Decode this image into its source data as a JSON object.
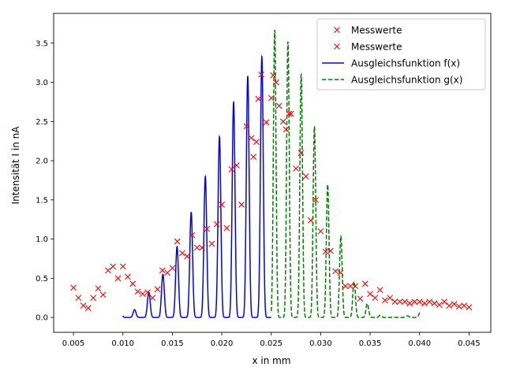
{
  "chart_data": {
    "type": "scatter",
    "xlabel": "x in mm",
    "ylabel": "Intensität I in nA",
    "xlim": [
      0.003,
      0.0472
    ],
    "ylim": [
      -0.19,
      3.88
    ],
    "x_ticks": [
      0.005,
      0.01,
      0.015,
      0.02,
      0.025,
      0.03,
      0.035,
      0.04,
      0.045
    ],
    "x_tick_labels": [
      "0.005",
      "0.010",
      "0.015",
      "0.020",
      "0.025",
      "0.030",
      "0.035",
      "0.040",
      "0.045"
    ],
    "y_ticks": [
      0.0,
      0.5,
      1.0,
      1.5,
      2.0,
      2.5,
      3.0,
      3.5
    ],
    "y_tick_labels": [
      "0.0",
      "0.5",
      "1.0",
      "1.5",
      "2.0",
      "2.5",
      "3.0",
      "3.5"
    ],
    "legend_position": "top-right",
    "grid": false,
    "series": [
      {
        "name": "Messwerte",
        "kind": "markers",
        "marker": "x",
        "color": "#ff0000",
        "points": [
          [
            0.005,
            0.38
          ],
          [
            0.0055,
            0.25
          ],
          [
            0.006,
            0.15
          ],
          [
            0.0065,
            0.12
          ],
          [
            0.007,
            0.25
          ],
          [
            0.0075,
            0.37
          ],
          [
            0.008,
            0.29
          ],
          [
            0.0085,
            0.6
          ],
          [
            0.009,
            0.65
          ],
          [
            0.0095,
            0.5
          ],
          [
            0.01,
            0.65
          ],
          [
            0.0105,
            0.52
          ],
          [
            0.011,
            0.43
          ],
          [
            0.0115,
            0.33
          ],
          [
            0.012,
            0.3
          ],
          [
            0.0125,
            0.32
          ],
          [
            0.013,
            0.25
          ],
          [
            0.0135,
            0.36
          ],
          [
            0.014,
            0.6
          ],
          [
            0.0145,
            0.57
          ],
          [
            0.015,
            0.63
          ],
          [
            0.0155,
            0.97
          ],
          [
            0.016,
            0.82
          ],
          [
            0.0165,
            0.78
          ],
          [
            0.017,
            1.05
          ],
          [
            0.0175,
            0.89
          ],
          [
            0.018,
            0.89
          ],
          [
            0.0185,
            1.13
          ],
          [
            0.019,
            0.94
          ],
          [
            0.0195,
            1.19
          ],
          [
            0.02,
            1.44
          ],
          [
            0.0205,
            1.14
          ],
          [
            0.021,
            1.89
          ],
          [
            0.0215,
            1.94
          ],
          [
            0.022,
            1.44
          ],
          [
            0.0225,
            2.44
          ],
          [
            0.023,
            2.29
          ],
          [
            0.0232,
            2.05
          ],
          [
            0.0235,
            2.24
          ],
          [
            0.0237,
            2.79
          ],
          [
            0.024,
            3.1
          ],
          [
            0.0245,
            2.49
          ],
          [
            0.025,
            2.8
          ],
          [
            0.0252,
            3.09
          ]
        ]
      },
      {
        "name": "Messwerte",
        "kind": "markers",
        "marker": "x",
        "color": "#ff0000",
        "points": [
          [
            0.0255,
            3.0
          ],
          [
            0.0258,
            2.7
          ],
          [
            0.0262,
            2.5
          ],
          [
            0.0265,
            2.4
          ],
          [
            0.0268,
            2.6
          ],
          [
            0.027,
            2.6
          ],
          [
            0.0275,
            1.9
          ],
          [
            0.028,
            2.1
          ],
          [
            0.0285,
            1.8
          ],
          [
            0.029,
            1.24
          ],
          [
            0.0295,
            1.5
          ],
          [
            0.03,
            1.1
          ],
          [
            0.0305,
            0.84
          ],
          [
            0.031,
            0.85
          ],
          [
            0.0315,
            0.59
          ],
          [
            0.032,
            0.57
          ],
          [
            0.0325,
            0.4
          ],
          [
            0.033,
            0.4
          ],
          [
            0.0335,
            0.4
          ],
          [
            0.034,
            0.24
          ],
          [
            0.0345,
            0.43
          ],
          [
            0.035,
            0.3
          ],
          [
            0.0355,
            0.25
          ],
          [
            0.036,
            0.35
          ],
          [
            0.0365,
            0.22
          ],
          [
            0.037,
            0.25
          ],
          [
            0.0375,
            0.2
          ],
          [
            0.038,
            0.2
          ],
          [
            0.0385,
            0.2
          ],
          [
            0.039,
            0.18
          ],
          [
            0.0395,
            0.2
          ],
          [
            0.04,
            0.2
          ],
          [
            0.0405,
            0.18
          ],
          [
            0.041,
            0.2
          ],
          [
            0.0415,
            0.18
          ],
          [
            0.042,
            0.16
          ],
          [
            0.0425,
            0.2
          ],
          [
            0.043,
            0.15
          ],
          [
            0.0435,
            0.17
          ],
          [
            0.044,
            0.14
          ],
          [
            0.0445,
            0.15
          ],
          [
            0.045,
            0.13
          ]
        ]
      },
      {
        "name": "Ausgleichsfunktion f(x)",
        "kind": "line",
        "color": "#0000ff",
        "dash": "solid",
        "x_range": [
          0.01,
          0.025
        ],
        "fringe_period": 0.00143,
        "fringe_peak_x": 0.02405,
        "peak_values": [
          [
            0.0114,
            0.1
          ],
          [
            0.0126,
            0.32
          ],
          [
            0.0141,
            0.56
          ],
          [
            0.0155,
            0.91
          ],
          [
            0.0169,
            1.34
          ],
          [
            0.0184,
            1.82
          ],
          [
            0.0198,
            2.32
          ],
          [
            0.0212,
            2.75
          ],
          [
            0.0227,
            3.1
          ],
          [
            0.02405,
            3.33
          ]
        ]
      },
      {
        "name": "Ausgleichsfunktion g(x)",
        "kind": "line",
        "color": "#008000",
        "dash": "dashed",
        "x_range": [
          0.025,
          0.04
        ],
        "fringe_period": 0.00134,
        "fringe_peak_x": 0.02535,
        "peak_values": [
          [
            0.02535,
            3.67
          ],
          [
            0.0267,
            3.52
          ],
          [
            0.0281,
            3.08
          ],
          [
            0.0294,
            2.42
          ],
          [
            0.0307,
            1.7
          ],
          [
            0.0321,
            1.01
          ],
          [
            0.0334,
            0.45
          ],
          [
            0.0348,
            0.16
          ],
          [
            0.0361,
            0.02
          ],
          [
            0.0374,
            0.0
          ],
          [
            0.0388,
            0.02
          ],
          [
            0.0395,
            0.08
          ]
        ]
      }
    ]
  }
}
